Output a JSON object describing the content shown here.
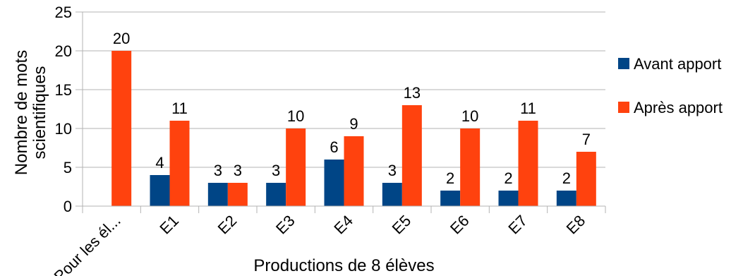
{
  "chart_data": {
    "type": "bar",
    "title": "",
    "xlabel": "Productions de 8 élèves",
    "ylabel_lines": [
      "Nombre de mots",
      "scientifiques"
    ],
    "categories": [
      "Pour les él...",
      "E1",
      "E2",
      "E3",
      "E4",
      "E5",
      "E6",
      "E7",
      "E8"
    ],
    "series": [
      {
        "name": "Avant apport",
        "color": "#004586",
        "values": [
          null,
          4,
          3,
          3,
          6,
          3,
          2,
          2,
          2
        ]
      },
      {
        "name": "Après apport",
        "color": "#ff420e",
        "values": [
          20,
          11,
          3,
          10,
          9,
          13,
          10,
          11,
          7
        ]
      }
    ],
    "ylim": [
      0,
      25
    ],
    "yticks": [
      0,
      5,
      10,
      15,
      20,
      25
    ],
    "grid": true,
    "legend": "right"
  }
}
